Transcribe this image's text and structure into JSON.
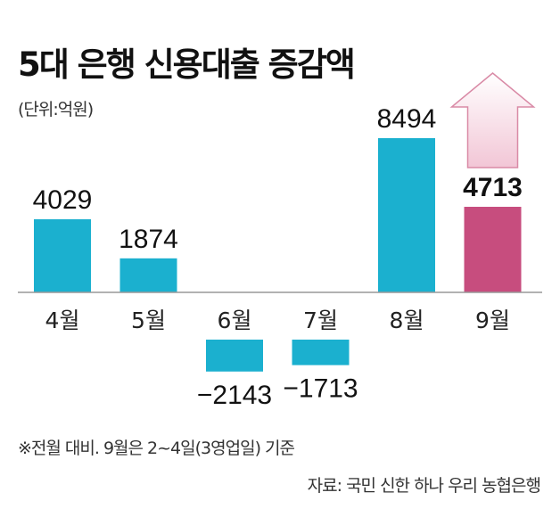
{
  "header": {
    "title": "5대 은행 신용대출 증감액",
    "unit": "(단위:억원)"
  },
  "footer": {
    "note": "※전월 대비. 9월은 2~4일(3영업일) 기준",
    "source": "자료: 국민 신한 하나 우리 농협은행"
  },
  "colors": {
    "bar": "#1bb0cf",
    "highlight": "#c74d7e",
    "arrow_fill_top": "#ffffff",
    "arrow_fill_bottom": "#f2c6d6",
    "arrow_stroke": "#d98aa6",
    "axis": "#999999"
  },
  "chart_data": {
    "type": "bar",
    "categories": [
      "4월",
      "5월",
      "6월",
      "7월",
      "8월",
      "9월"
    ],
    "values": [
      4029,
      1874,
      -2143,
      -1713,
      8494,
      4713
    ],
    "value_labels": [
      "4029",
      "1874",
      "-2143",
      "-1713",
      "8494",
      "4713"
    ],
    "highlight_index": 5,
    "projection_arrow_on": "9월",
    "baseline": 0,
    "title": "5대 은행 신용대출 증감액",
    "ylabel": "",
    "xlabel": "",
    "grid": false
  }
}
